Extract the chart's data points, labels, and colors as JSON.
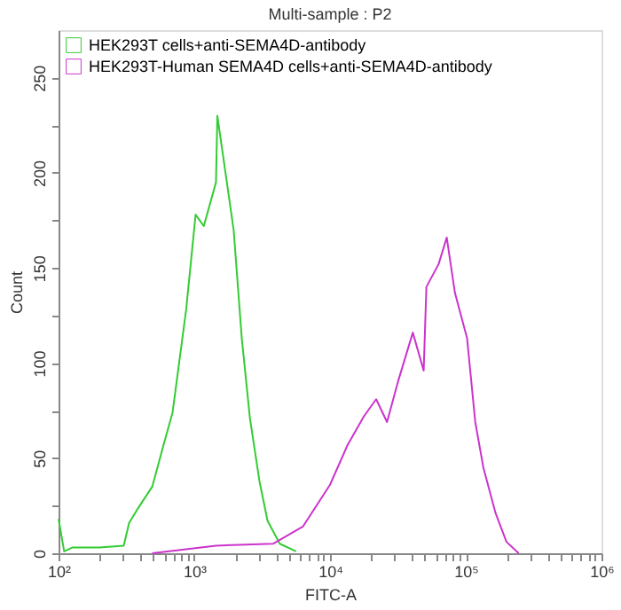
{
  "chart_data": {
    "type": "line",
    "title": "Multi-sample : P2",
    "xlabel": "FITC-A",
    "ylabel": "Count",
    "log": "x",
    "xlim": [
      100,
      1000000
    ],
    "xticks": [
      {
        "value": 100,
        "label": "10²"
      },
      {
        "value": 200,
        "label": null
      },
      {
        "value": 300,
        "label": null
      },
      {
        "value": 400,
        "label": null
      },
      {
        "value": 500,
        "label": null
      },
      {
        "value": 600,
        "label": null
      },
      {
        "value": 700,
        "label": null
      },
      {
        "value": 800,
        "label": null
      },
      {
        "value": 900,
        "label": null
      },
      {
        "value": 1000,
        "label": "10³"
      },
      {
        "value": 2000,
        "label": null
      },
      {
        "value": 3000,
        "label": null
      },
      {
        "value": 4000,
        "label": null
      },
      {
        "value": 5000,
        "label": null
      },
      {
        "value": 6000,
        "label": null
      },
      {
        "value": 7000,
        "label": null
      },
      {
        "value": 8000,
        "label": null
      },
      {
        "value": 9000,
        "label": null
      },
      {
        "value": 10000,
        "label": "10⁴"
      },
      {
        "value": 20000,
        "label": null
      },
      {
        "value": 30000,
        "label": null
      },
      {
        "value": 40000,
        "label": null
      },
      {
        "value": 50000,
        "label": null
      },
      {
        "value": 60000,
        "label": null
      },
      {
        "value": 70000,
        "label": null
      },
      {
        "value": 80000,
        "label": null
      },
      {
        "value": 90000,
        "label": null
      },
      {
        "value": 100000,
        "label": "10⁵"
      },
      {
        "value": 200000,
        "label": null
      },
      {
        "value": 300000,
        "label": null
      },
      {
        "value": 400000,
        "label": null
      },
      {
        "value": 500000,
        "label": null
      },
      {
        "value": 600000,
        "label": null
      },
      {
        "value": 700000,
        "label": null
      },
      {
        "value": 800000,
        "label": null
      },
      {
        "value": 900000,
        "label": null
      },
      {
        "value": 1000000,
        "label": "10⁶"
      }
    ],
    "ylim": [
      0,
      275
    ],
    "yticks": [
      0,
      {
        "value": 25,
        "label": null
      },
      50,
      {
        "value": 75,
        "label": null
      },
      100,
      {
        "value": 125,
        "label": null
      },
      150,
      {
        "value": 175,
        "label": null
      },
      200,
      {
        "value": 225,
        "label": null
      },
      250
    ],
    "grid": false,
    "legend": "top left",
    "marker": "none",
    "line_style": "solid",
    "series": [
      {
        "name": "HEK293T cells+anti-SEMA4D-antibody",
        "color": "#33cc33",
        "x": [
          100,
          110,
          126,
          200,
          302,
          331,
          380,
          490,
          589,
          692,
          871,
          1023,
          1175,
          1445,
          1479,
          1950,
          2239,
          2570,
          3020,
          3467,
          4266,
          5623
        ],
        "values": [
          18,
          1,
          3,
          3,
          4,
          16,
          23,
          35,
          56,
          74,
          128,
          178,
          172,
          195,
          230,
          170,
          113,
          71,
          38,
          17,
          5,
          1
        ]
      },
      {
        "name": "HEK293T-Human SEMA4D cells+anti-SEMA4D-antibody",
        "color": "#cc33cc",
        "x": [
          490,
          1445,
          3802,
          6310,
          10000,
          13490,
          17780,
          21880,
          26300,
          31620,
          40740,
          48980,
          51290,
          63100,
          72440,
          83180,
          102300,
          117500,
          134900,
          166000,
          199500,
          245500
        ],
        "values": [
          0,
          4,
          5,
          14,
          36,
          57,
          72,
          81,
          69,
          90,
          116,
          96,
          140,
          152,
          166,
          137,
          113,
          69,
          45,
          21,
          6,
          0
        ]
      }
    ]
  }
}
